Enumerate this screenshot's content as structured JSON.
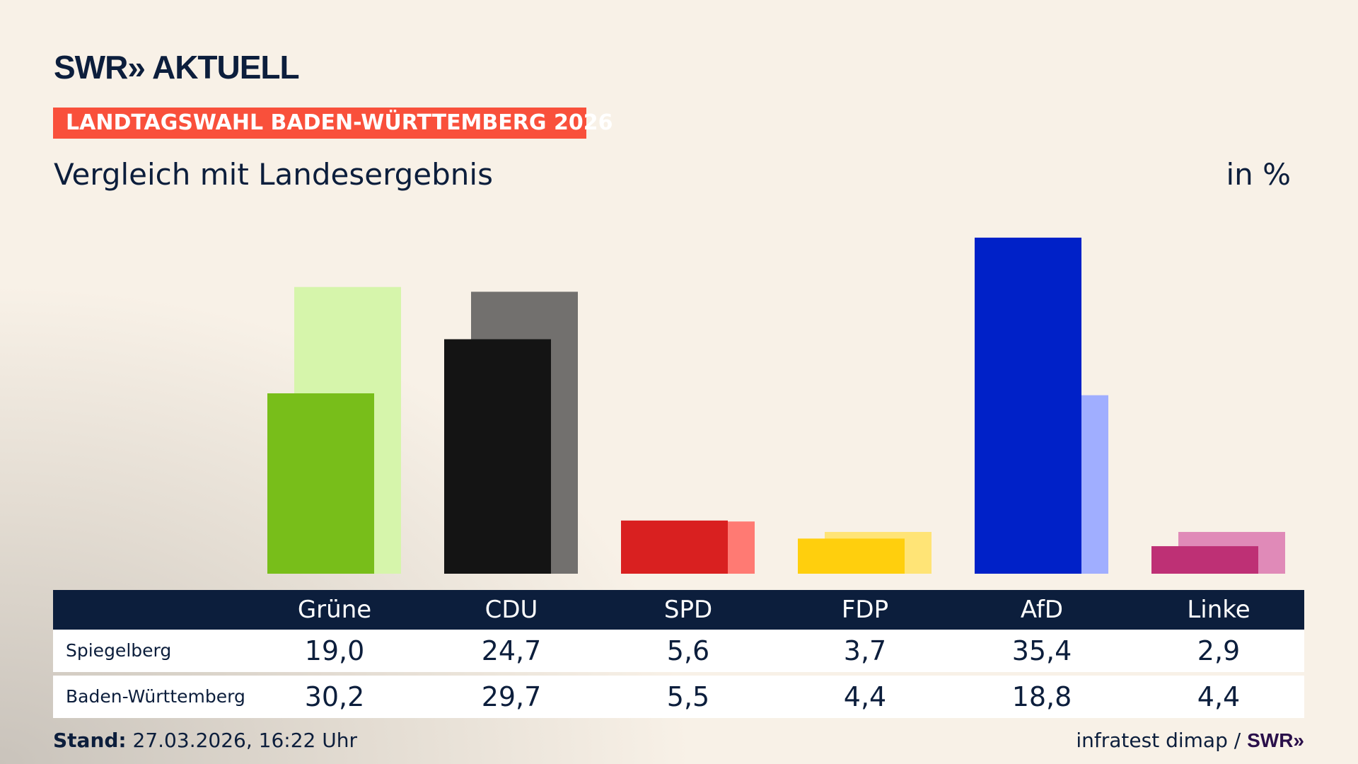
{
  "header": {
    "logo": "SWR» AKTUELL",
    "banner": "LANDTAGSWAHL BADEN-WÜRTTEMBERG 2026",
    "subtitle": "Vergleich mit Landesergebnis",
    "unit": "in %"
  },
  "chart_data": {
    "type": "bar",
    "title": "Vergleich mit Landesergebnis",
    "ylabel": "in %",
    "categories": [
      "Grüne",
      "CDU",
      "SPD",
      "FDP",
      "AfD",
      "Linke"
    ],
    "series": [
      {
        "name": "Spiegelberg",
        "values": [
          19.0,
          24.7,
          5.6,
          3.7,
          35.4,
          2.9
        ],
        "labels": [
          "19,0",
          "24,7",
          "5,6",
          "3,7",
          "35,4",
          "2,9"
        ]
      },
      {
        "name": "Baden-Württemberg",
        "values": [
          30.2,
          29.7,
          5.5,
          4.4,
          18.8,
          4.4
        ],
        "labels": [
          "30,2",
          "29,7",
          "5,5",
          "4,4",
          "18,8",
          "4,4"
        ]
      }
    ],
    "colors": {
      "primary": [
        "#78be1a",
        "#141414",
        "#d92020",
        "#ffcf0d",
        "#0021c8",
        "#be3075"
      ],
      "secondary": [
        "#d6f5ab",
        "#72706e",
        "#ff7a73",
        "#ffe476",
        "#a0aeff",
        "#e08ab8"
      ]
    },
    "grid": false,
    "legend": "table-below"
  },
  "footer": {
    "stand_label": "Stand:",
    "stand_value": "27.03.2026, 16:22 Uhr",
    "source": "infratest dimap /",
    "source_logo": "SWR»"
  }
}
